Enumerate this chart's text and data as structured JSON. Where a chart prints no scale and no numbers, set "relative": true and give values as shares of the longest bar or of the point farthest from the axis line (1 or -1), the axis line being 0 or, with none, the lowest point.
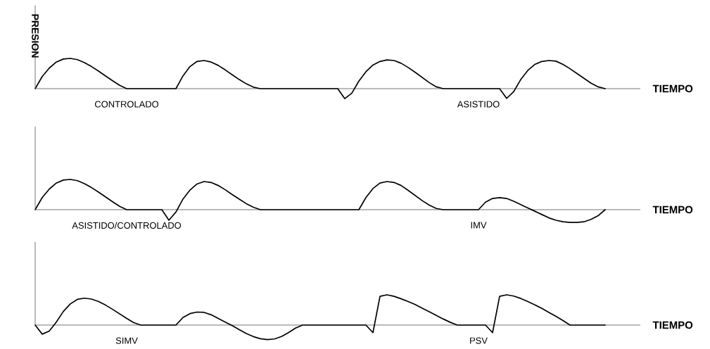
{
  "chart_data": [
    {
      "type": "line",
      "relative": true,
      "ylabel": "PRESION",
      "xlabel": "TIEMPO",
      "annotations": [
        "CONTROLADO",
        "ASISTIDO"
      ],
      "categories": [
        null,
        null,
        null,
        null,
        null,
        null,
        null,
        null,
        null,
        null,
        null,
        null,
        null,
        null,
        null,
        null,
        null,
        null,
        null,
        null,
        null,
        null,
        null,
        null,
        null,
        null,
        null,
        null,
        null,
        null,
        null,
        null,
        null,
        null,
        null,
        null,
        null,
        null,
        null,
        null,
        null,
        null,
        null,
        null,
        null,
        null,
        null,
        null,
        null,
        null,
        null,
        null,
        null,
        null,
        null,
        null,
        null,
        null,
        null,
        null,
        null,
        null,
        null,
        null,
        null,
        null,
        null,
        null,
        null,
        null,
        null,
        null,
        null,
        null,
        null,
        null,
        null,
        null,
        null,
        null,
        null,
        null
      ],
      "series": [
        {
          "color": "#000000",
          "values": [
            0,
            0.4,
            0.68,
            0.88,
            0.98,
            1,
            0.96,
            0.86,
            0.73,
            0.58,
            0.42,
            0.26,
            0.11,
            0,
            0,
            0,
            0,
            0,
            0,
            0,
            0,
            0.42,
            0.73,
            0.9,
            0.93,
            0.88,
            0.77,
            0.62,
            0.46,
            0.3,
            0.16,
            0.05,
            0,
            0,
            0,
            0,
            0,
            0,
            0,
            0,
            0,
            0,
            0,
            0,
            -0.33,
            -0.15,
            0.25,
            0.56,
            0.78,
            0.9,
            0.95,
            0.93,
            0.84,
            0.7,
            0.54,
            0.37,
            0.2,
            0.06,
            0,
            0,
            0,
            0,
            0,
            0,
            0,
            0,
            0,
            -0.32,
            -0.1,
            0.3,
            0.6,
            0.8,
            0.9,
            0.93,
            0.91,
            0.8,
            0.66,
            0.5,
            0.34,
            0.18,
            0.06,
            0
          ]
        }
      ]
    },
    {
      "type": "line",
      "relative": true,
      "xlabel": "TIEMPO",
      "annotations": [
        "ASISTIDO/CONTROLADO",
        "IMV"
      ],
      "categories": [
        null,
        null,
        null,
        null,
        null,
        null,
        null,
        null,
        null,
        null,
        null,
        null,
        null,
        null,
        null,
        null,
        null,
        null,
        null,
        null,
        null,
        null,
        null,
        null,
        null,
        null,
        null,
        null,
        null,
        null,
        null,
        null,
        null,
        null,
        null,
        null,
        null,
        null,
        null,
        null,
        null,
        null,
        null,
        null,
        null,
        null,
        null,
        null,
        null,
        null,
        null,
        null,
        null,
        null,
        null,
        null,
        null,
        null,
        null,
        null,
        null,
        null,
        null,
        null,
        null,
        null,
        null,
        null,
        null,
        null,
        null,
        null,
        null,
        null,
        null,
        null,
        null,
        null,
        null,
        null,
        null,
        null
      ],
      "series": [
        {
          "color": "#000000",
          "values": [
            0,
            0.4,
            0.68,
            0.88,
            0.98,
            1,
            0.96,
            0.86,
            0.73,
            0.58,
            0.42,
            0.26,
            0.11,
            0,
            0,
            0,
            0,
            0,
            0,
            -0.35,
            -0.08,
            0.35,
            0.65,
            0.85,
            0.93,
            0.9,
            0.8,
            0.66,
            0.5,
            0.35,
            0.2,
            0.08,
            0,
            0,
            0,
            0,
            0,
            0,
            0,
            0,
            0,
            0,
            0,
            0,
            0,
            0,
            0,
            0.4,
            0.7,
            0.88,
            0.93,
            0.9,
            0.8,
            0.64,
            0.47,
            0.3,
            0.15,
            0.04,
            0,
            0,
            0,
            0,
            0,
            0,
            0.25,
            0.37,
            0.4,
            0.37,
            0.28,
            0.17,
            0.06,
            -0.05,
            -0.16,
            -0.27,
            -0.35,
            -0.4,
            -0.42,
            -0.42,
            -0.4,
            -0.32,
            -0.2,
            0
          ]
        }
      ]
    },
    {
      "type": "line",
      "relative": true,
      "xlabel": "TIEMPO",
      "annotations": [
        "SIMV",
        "PSV"
      ],
      "categories": [
        null,
        null,
        null,
        null,
        null,
        null,
        null,
        null,
        null,
        null,
        null,
        null,
        null,
        null,
        null,
        null,
        null,
        null,
        null,
        null,
        null,
        null,
        null,
        null,
        null,
        null,
        null,
        null,
        null,
        null,
        null,
        null,
        null,
        null,
        null,
        null,
        null,
        null,
        null,
        null,
        null,
        null,
        null,
        null,
        null,
        null,
        null,
        null,
        null,
        null,
        null,
        null,
        null,
        null,
        null,
        null,
        null,
        null,
        null,
        null,
        null,
        null,
        null,
        null,
        null,
        null,
        null,
        null,
        null,
        null,
        null,
        null,
        null,
        null,
        null,
        null,
        null,
        null,
        null,
        null,
        null,
        null
      ],
      "series": [
        {
          "color": "#000000",
          "values": [
            0,
            -0.3,
            -0.2,
            0.1,
            0.45,
            0.7,
            0.85,
            0.89,
            0.86,
            0.78,
            0.66,
            0.52,
            0.37,
            0.22,
            0.08,
            0,
            0,
            0,
            0,
            0,
            0,
            0.25,
            0.38,
            0.43,
            0.42,
            0.34,
            0.22,
            0.1,
            -0.02,
            -0.15,
            -0.28,
            -0.38,
            -0.45,
            -0.48,
            -0.46,
            -0.38,
            -0.25,
            -0.1,
            0,
            0,
            0,
            0,
            0,
            0,
            0,
            0,
            0,
            0,
            -0.25,
            0.95,
            1,
            0.95,
            0.87,
            0.78,
            0.68,
            0.56,
            0.44,
            0.32,
            0.2,
            0.09,
            0,
            0,
            0,
            0,
            0,
            -0.25,
            0.95,
            1,
            0.96,
            0.88,
            0.78,
            0.67,
            0.55,
            0.42,
            0.29,
            0.15,
            0,
            0,
            0,
            0,
            0,
            0
          ]
        }
      ]
    }
  ]
}
